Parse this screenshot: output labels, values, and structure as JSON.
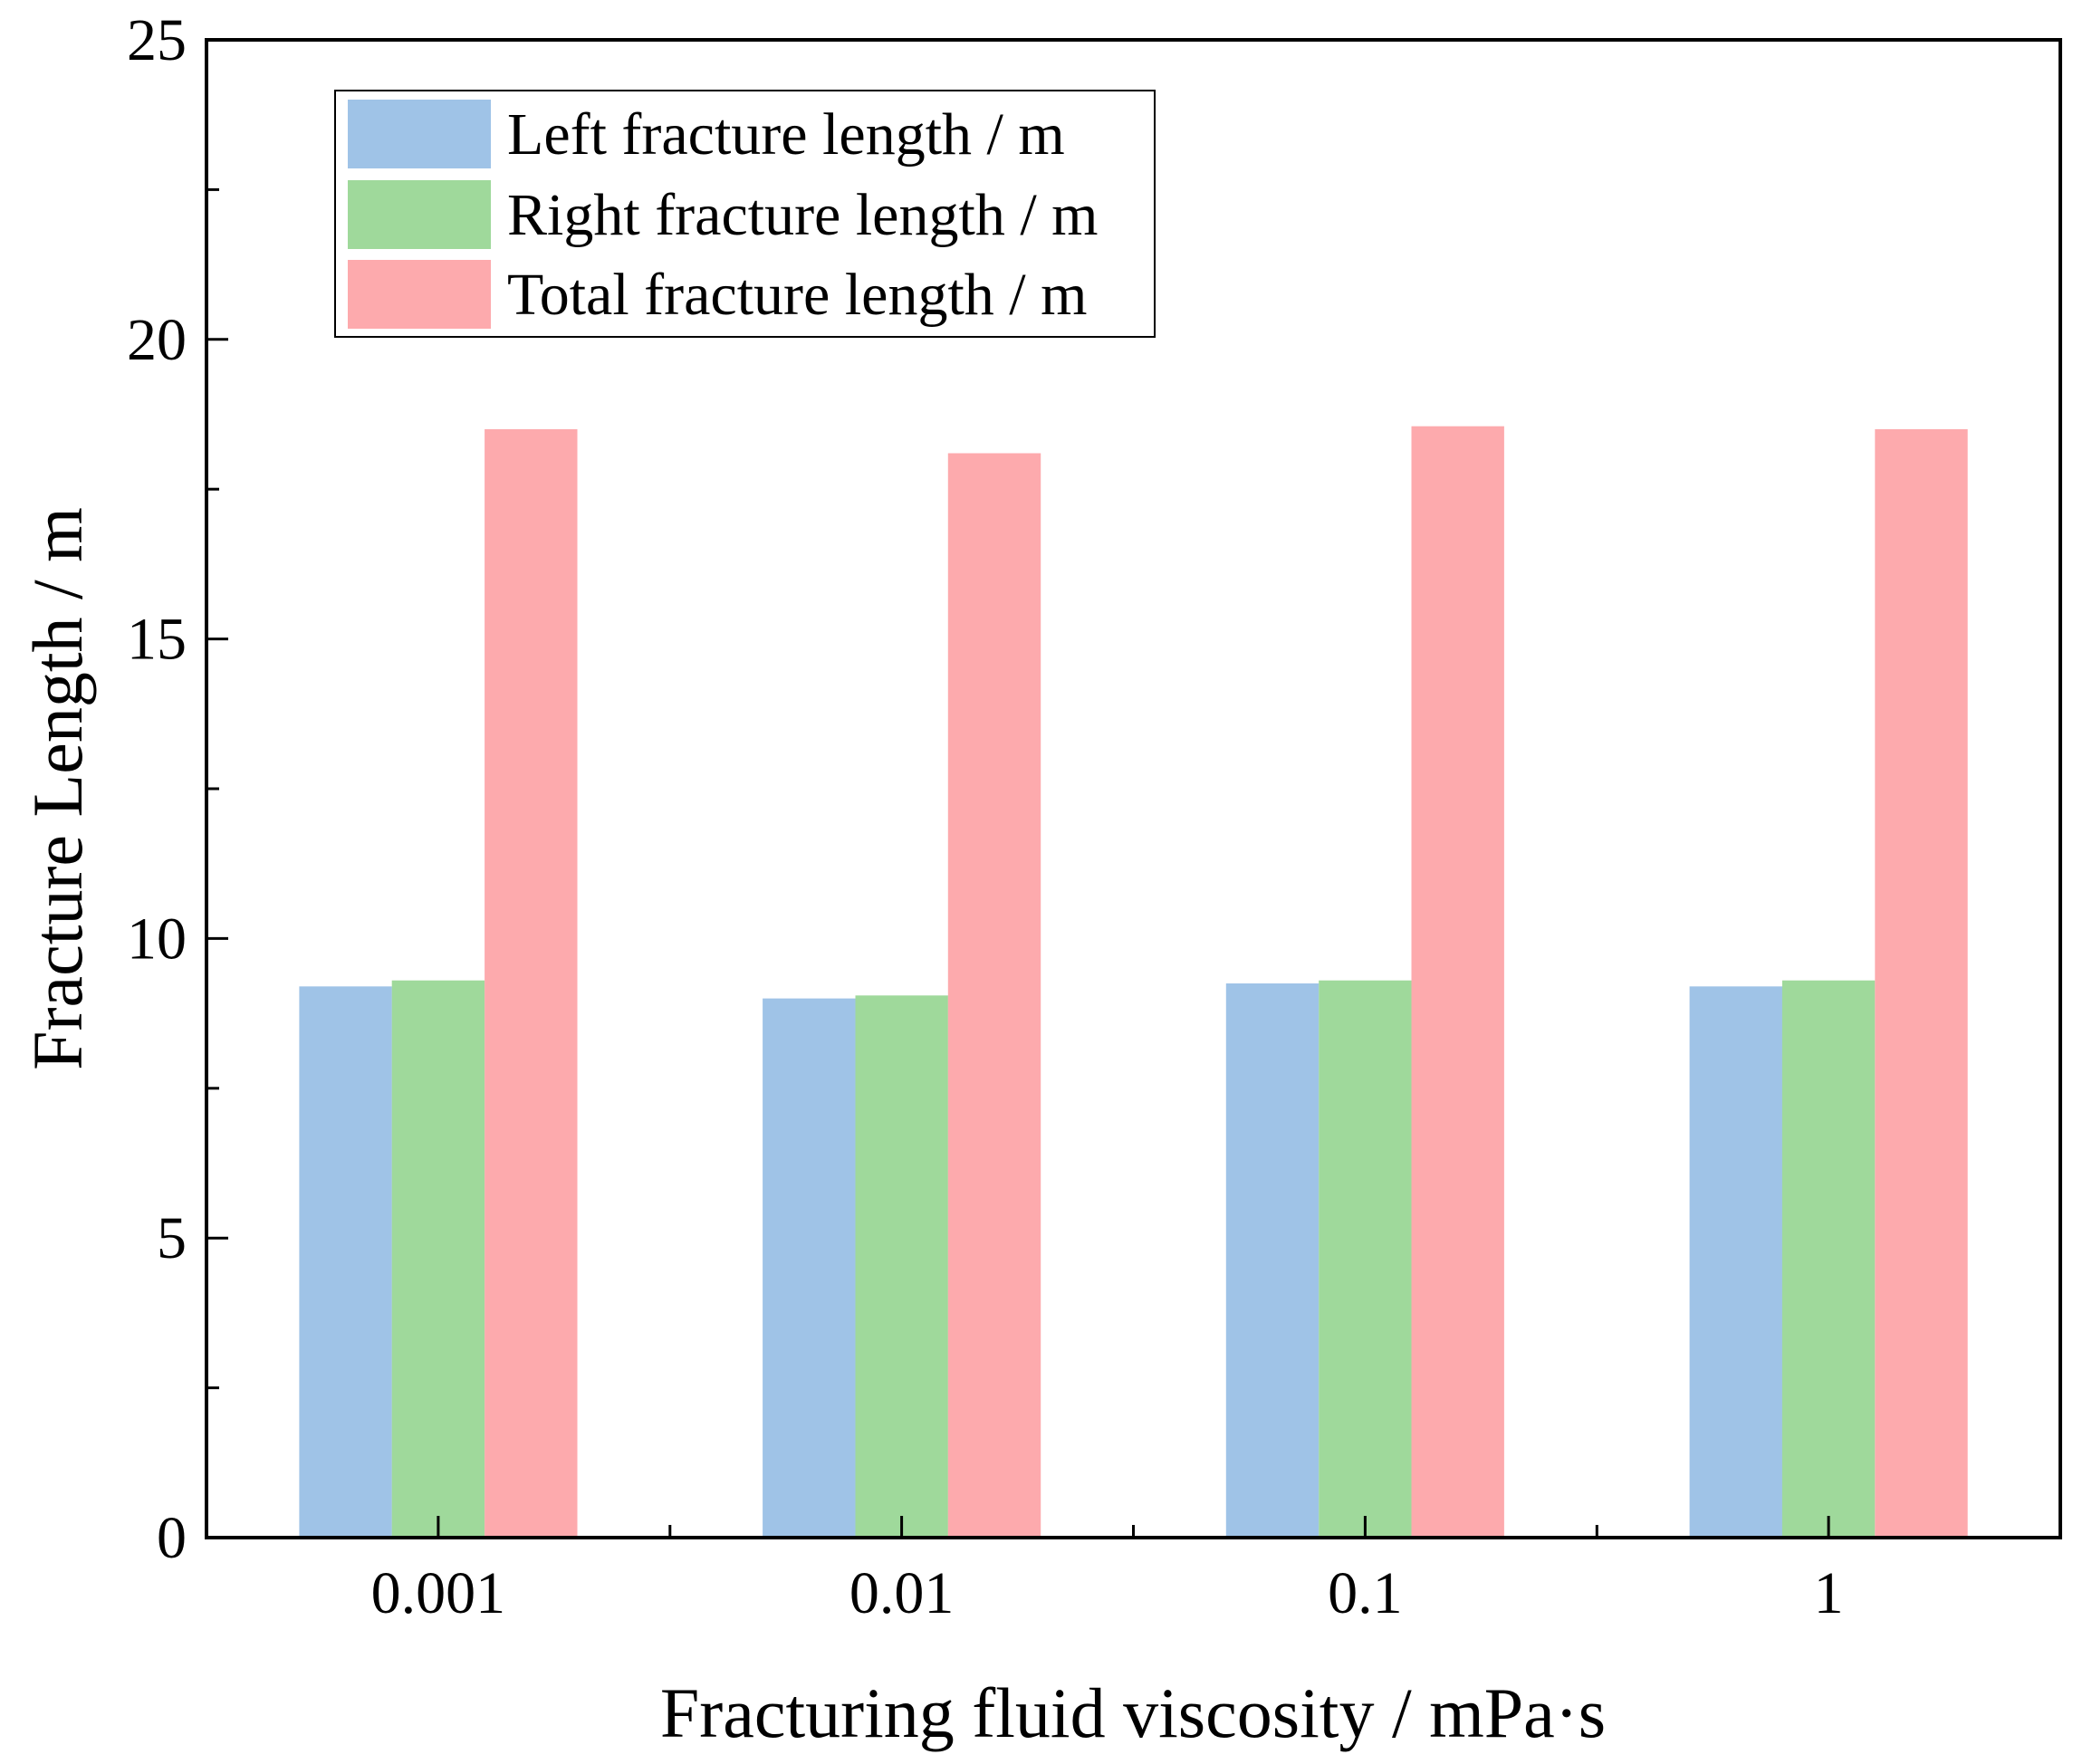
{
  "chart_data": {
    "type": "bar",
    "title": "",
    "xlabel": "Fracturing fluid viscosity / mPa·s",
    "ylabel": "Fracture Length / m",
    "categories": [
      "0.001",
      "0.01",
      "0.1",
      "1"
    ],
    "series": [
      {
        "name": "Left fracture length / m",
        "color": "#9fc3e7",
        "values": [
          9.2,
          9.0,
          9.25,
          9.2
        ]
      },
      {
        "name": "Right fracture length / m",
        "color": "#9fd99b",
        "values": [
          9.3,
          9.05,
          9.3,
          9.3
        ]
      },
      {
        "name": "Total fracture length / m",
        "color": "#fdaaad",
        "values": [
          18.5,
          18.1,
          18.55,
          18.5
        ]
      }
    ],
    "ylim": [
      0,
      25
    ],
    "yticks": [
      "0",
      "5",
      "10",
      "15",
      "20",
      "25"
    ],
    "grid": false,
    "legend_position": "top-left"
  }
}
